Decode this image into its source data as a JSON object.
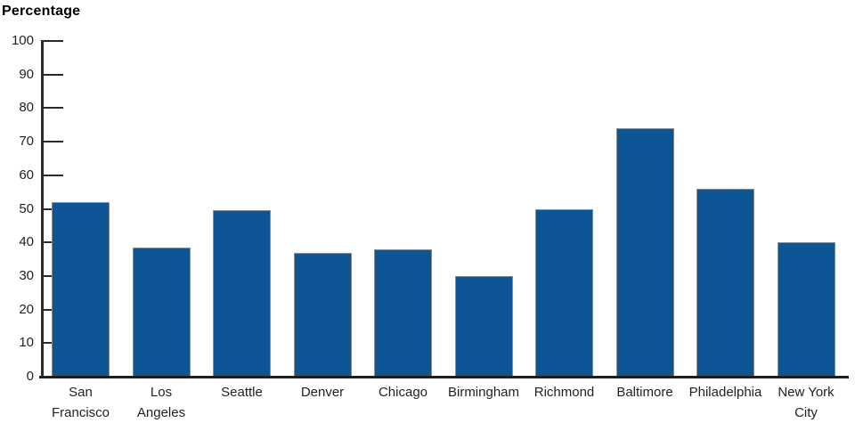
{
  "chart_data": {
    "type": "bar",
    "title": "Percentage",
    "ylabel": "Percentage",
    "xlabel": "",
    "categories": [
      "San Francisco",
      "Los Angeles",
      "Seattle",
      "Denver",
      "Chicago",
      "Birmingham",
      "Richmond",
      "Baltimore",
      "Philadelphia",
      "New York City"
    ],
    "categories_display": [
      [
        "San",
        "Francisco"
      ],
      [
        "Los",
        "Angeles"
      ],
      [
        "Seattle"
      ],
      [
        "Denver"
      ],
      [
        "Chicago"
      ],
      [
        "Birmingham"
      ],
      [
        "Richmond"
      ],
      [
        "Baltimore"
      ],
      [
        "Philadelphia"
      ],
      [
        "New York",
        "City"
      ]
    ],
    "values": [
      52,
      38.5,
      49.5,
      37,
      38,
      30,
      50,
      74,
      56,
      40
    ],
    "ylim": [
      0,
      100
    ],
    "yticks": [
      0,
      10,
      20,
      30,
      40,
      50,
      60,
      70,
      80,
      90,
      100
    ],
    "grid": false,
    "legend": "none",
    "bar_color": "#0d5594",
    "bar_border_color": "#8c8c8c",
    "axis_color": "#2b2b2b",
    "text_color": "#231f20"
  }
}
